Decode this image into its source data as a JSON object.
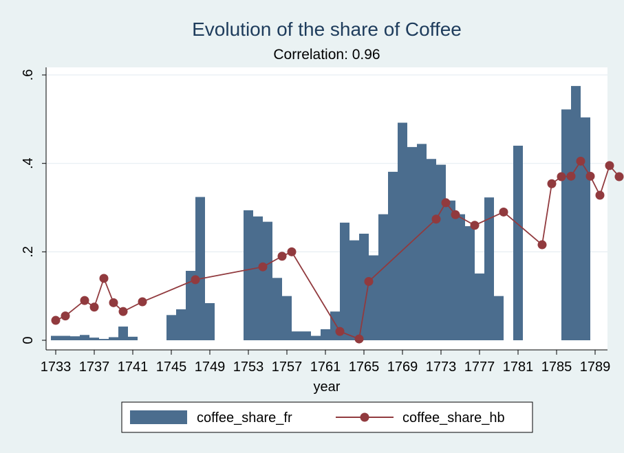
{
  "chart_data": {
    "type": "bar+line",
    "title": "Evolution of the share of Coffee",
    "subtitle": "Correlation: 0.96",
    "xlabel": "year",
    "ylabel": "",
    "xlim": [
      1732.2,
      1789.8
    ],
    "ylim": [
      0,
      0.6
    ],
    "x_ticks": [
      1733,
      1737,
      1741,
      1745,
      1749,
      1753,
      1757,
      1761,
      1765,
      1769,
      1773,
      1777,
      1781,
      1785,
      1789
    ],
    "y_ticks": [
      0,
      0.2,
      0.4,
      0.6
    ],
    "y_tick_labels": [
      "0",
      ".2",
      ".4",
      ".6"
    ],
    "grid": true,
    "legend_position": "bottom",
    "colors": {
      "bars": "#4b6d8e",
      "line": "#913a3e",
      "background": "#eaf2f3",
      "plot": "#ffffff"
    },
    "bars": {
      "name": "coffee_share_fr",
      "points": [
        [
          1733,
          0.01
        ],
        [
          1734,
          0.01
        ],
        [
          1735,
          0.009
        ],
        [
          1736,
          0.012
        ],
        [
          1737,
          0.006
        ],
        [
          1738,
          0.003
        ],
        [
          1739,
          0.007
        ],
        [
          1740,
          0.031
        ],
        [
          1741,
          0.008
        ],
        [
          1745,
          0.057
        ],
        [
          1746,
          0.07
        ],
        [
          1747,
          0.157
        ],
        [
          1748,
          0.324
        ],
        [
          1749,
          0.084
        ],
        [
          1753,
          0.294
        ],
        [
          1754,
          0.28
        ],
        [
          1755,
          0.268
        ],
        [
          1756,
          0.141
        ],
        [
          1757,
          0.1
        ],
        [
          1758,
          0.02
        ],
        [
          1759,
          0.02
        ],
        [
          1760,
          0.01
        ],
        [
          1761,
          0.025
        ],
        [
          1762,
          0.065
        ],
        [
          1763,
          0.266
        ],
        [
          1764,
          0.226
        ],
        [
          1765,
          0.241
        ],
        [
          1766,
          0.192
        ],
        [
          1767,
          0.285
        ],
        [
          1768,
          0.381
        ],
        [
          1769,
          0.492
        ],
        [
          1770,
          0.437
        ],
        [
          1771,
          0.444
        ],
        [
          1772,
          0.41
        ],
        [
          1773,
          0.397
        ],
        [
          1774,
          0.316
        ],
        [
          1775,
          0.285
        ],
        [
          1776,
          0.258
        ],
        [
          1777,
          0.151
        ],
        [
          1778,
          0.323
        ],
        [
          1779,
          0.1
        ],
        [
          1781,
          0.44
        ],
        [
          1786,
          0.522
        ],
        [
          1787,
          0.575
        ],
        [
          1788,
          0.504
        ]
      ]
    },
    "line": {
      "name": "coffee_share_hb",
      "points": [
        [
          1733,
          0.045
        ],
        [
          1734,
          0.055
        ],
        [
          1736,
          0.09
        ],
        [
          1737,
          0.075
        ],
        [
          1738,
          0.14
        ],
        [
          1739,
          0.085
        ],
        [
          1740,
          0.065
        ],
        [
          1742,
          0.087
        ],
        [
          1747.5,
          0.137
        ],
        [
          1754.5,
          0.166
        ],
        [
          1756.5,
          0.19
        ],
        [
          1757.5,
          0.2
        ],
        [
          1762.5,
          0.02
        ],
        [
          1764.5,
          0.003
        ],
        [
          1765.5,
          0.133
        ],
        [
          1772.5,
          0.274
        ],
        [
          1773.5,
          0.311
        ],
        [
          1774.5,
          0.284
        ],
        [
          1776.5,
          0.26
        ],
        [
          1779.5,
          0.29
        ],
        [
          1783.5,
          0.216
        ],
        [
          1784.5,
          0.354
        ],
        [
          1785.5,
          0.37
        ],
        [
          1786.5,
          0.371
        ],
        [
          1787.5,
          0.405
        ],
        [
          1788.5,
          0.371
        ],
        [
          1789.5,
          0.328
        ],
        [
          1790.5,
          0.395
        ],
        [
          1791.5,
          0.37
        ]
      ]
    }
  }
}
